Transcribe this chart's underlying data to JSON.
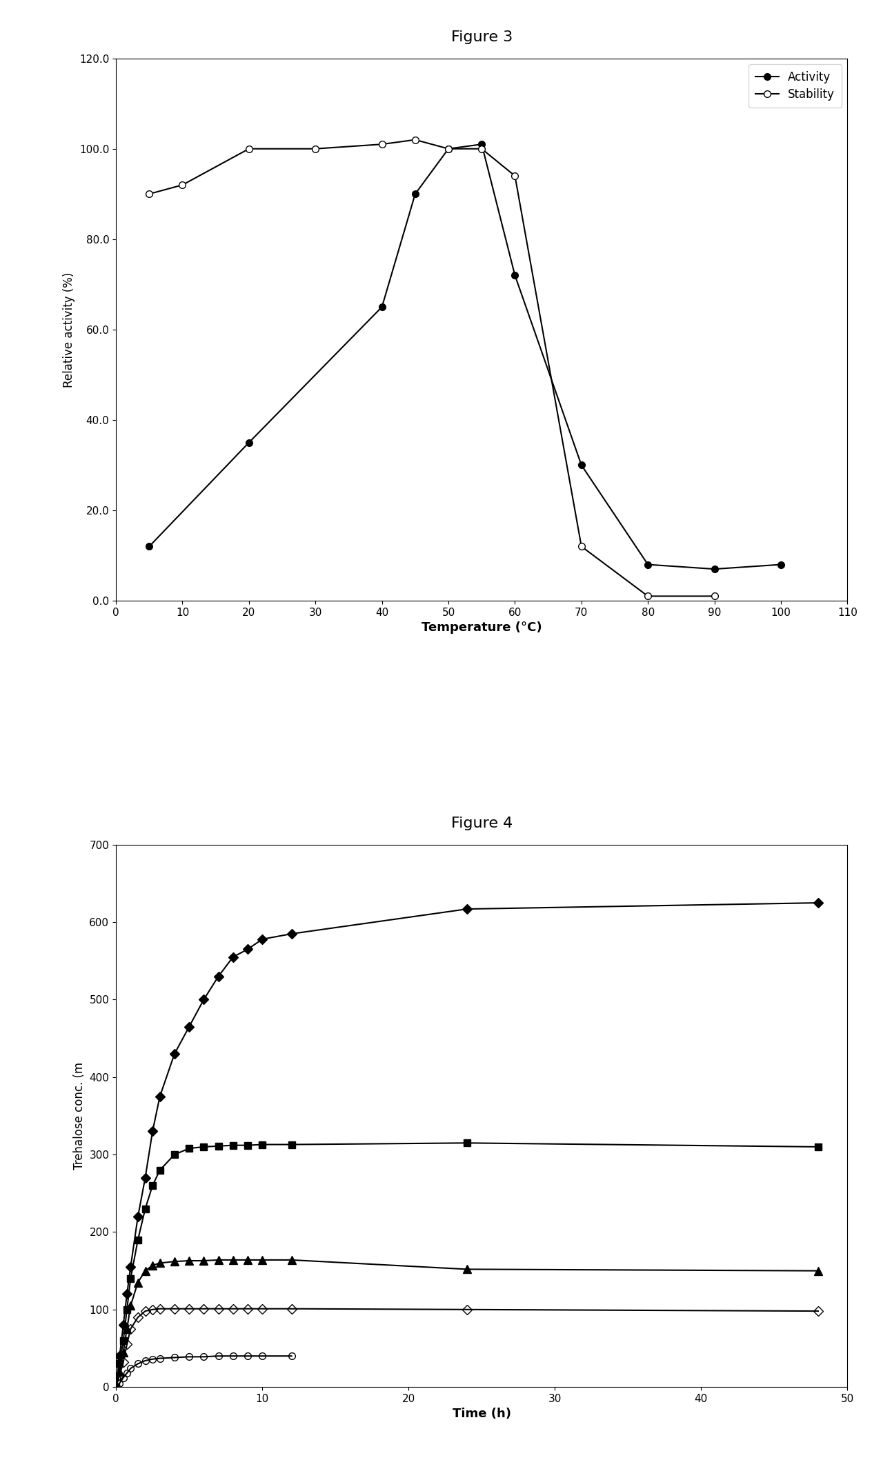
{
  "fig3": {
    "title": "Figure 3",
    "activity_x": [
      5,
      20,
      40,
      45,
      50,
      55,
      60,
      70,
      80,
      90,
      100
    ],
    "activity_y": [
      12,
      35,
      65,
      90,
      100,
      101,
      72,
      30,
      8,
      7,
      8
    ],
    "stability_x": [
      5,
      10,
      20,
      30,
      40,
      45,
      50,
      55,
      60,
      70,
      80,
      90
    ],
    "stability_y": [
      90,
      92,
      100,
      100,
      101,
      102,
      100,
      100,
      94,
      12,
      1,
      1
    ],
    "xlabel": "Temperature (°C)",
    "ylabel": "Relative activity (%)",
    "xlim": [
      0,
      110
    ],
    "ylim": [
      0.0,
      120.0
    ],
    "xticks": [
      0,
      10,
      20,
      30,
      40,
      50,
      60,
      70,
      80,
      90,
      100,
      110
    ],
    "ytick_vals": [
      0.0,
      20.0,
      40.0,
      60.0,
      80.0,
      100.0,
      120.0
    ],
    "ytick_labels": [
      "0.0",
      "20.0",
      "40.0",
      "60.0",
      "80.0",
      "100.0",
      "120.0"
    ]
  },
  "fig4": {
    "title": "Figure 4",
    "series": [
      {
        "label": "diamond_filled",
        "x": [
          0,
          0.25,
          0.5,
          0.75,
          1,
          1.5,
          2,
          2.5,
          3,
          4,
          5,
          6,
          7,
          8,
          9,
          10,
          12,
          24,
          48
        ],
        "y": [
          0,
          40,
          80,
          120,
          155,
          220,
          270,
          330,
          375,
          430,
          465,
          500,
          530,
          555,
          565,
          578,
          585,
          617,
          625
        ],
        "marker": "D",
        "fillstyle": "full",
        "color": "black"
      },
      {
        "label": "square_filled",
        "x": [
          0,
          0.25,
          0.5,
          0.75,
          1,
          1.5,
          2,
          2.5,
          3,
          4,
          5,
          6,
          7,
          8,
          9,
          10,
          12,
          24,
          48
        ],
        "y": [
          0,
          30,
          60,
          100,
          140,
          190,
          230,
          260,
          280,
          300,
          308,
          310,
          311,
          312,
          312,
          313,
          313,
          315,
          310
        ],
        "marker": "s",
        "fillstyle": "full",
        "color": "black"
      },
      {
        "label": "triangle_filled",
        "x": [
          0,
          0.25,
          0.5,
          0.75,
          1,
          1.5,
          2,
          2.5,
          3,
          4,
          5,
          6,
          7,
          8,
          9,
          10,
          12,
          24,
          48
        ],
        "y": [
          0,
          20,
          45,
          75,
          105,
          135,
          150,
          157,
          160,
          162,
          163,
          163,
          164,
          164,
          164,
          164,
          164,
          152,
          150
        ],
        "marker": "^",
        "fillstyle": "full",
        "color": "black"
      },
      {
        "label": "diamond_open",
        "x": [
          0,
          0.25,
          0.5,
          0.75,
          1,
          1.5,
          2,
          2.5,
          3,
          4,
          5,
          6,
          7,
          8,
          9,
          10,
          12,
          24,
          48
        ],
        "y": [
          0,
          15,
          32,
          55,
          75,
          90,
          98,
          100,
          101,
          101,
          101,
          101,
          101,
          101,
          101,
          101,
          101,
          100,
          98
        ],
        "marker": "D",
        "fillstyle": "none",
        "color": "black"
      },
      {
        "label": "circle_open",
        "x": [
          0,
          0.25,
          0.5,
          0.75,
          1,
          1.5,
          2,
          2.5,
          3,
          4,
          5,
          6,
          7,
          8,
          9,
          10,
          12
        ],
        "y": [
          0,
          5,
          12,
          18,
          24,
          30,
          34,
          36,
          37,
          38,
          39,
          39,
          40,
          40,
          40,
          40,
          40
        ],
        "marker": "o",
        "fillstyle": "none",
        "color": "black"
      }
    ],
    "xlabel": "Time (h)",
    "ylabel": "Trehalose conc. (m",
    "xlim": [
      0,
      50
    ],
    "ylim": [
      0,
      700
    ],
    "xticks": [
      0,
      10,
      20,
      30,
      40,
      50
    ],
    "yticks": [
      0,
      100,
      200,
      300,
      400,
      500,
      600,
      700
    ]
  }
}
